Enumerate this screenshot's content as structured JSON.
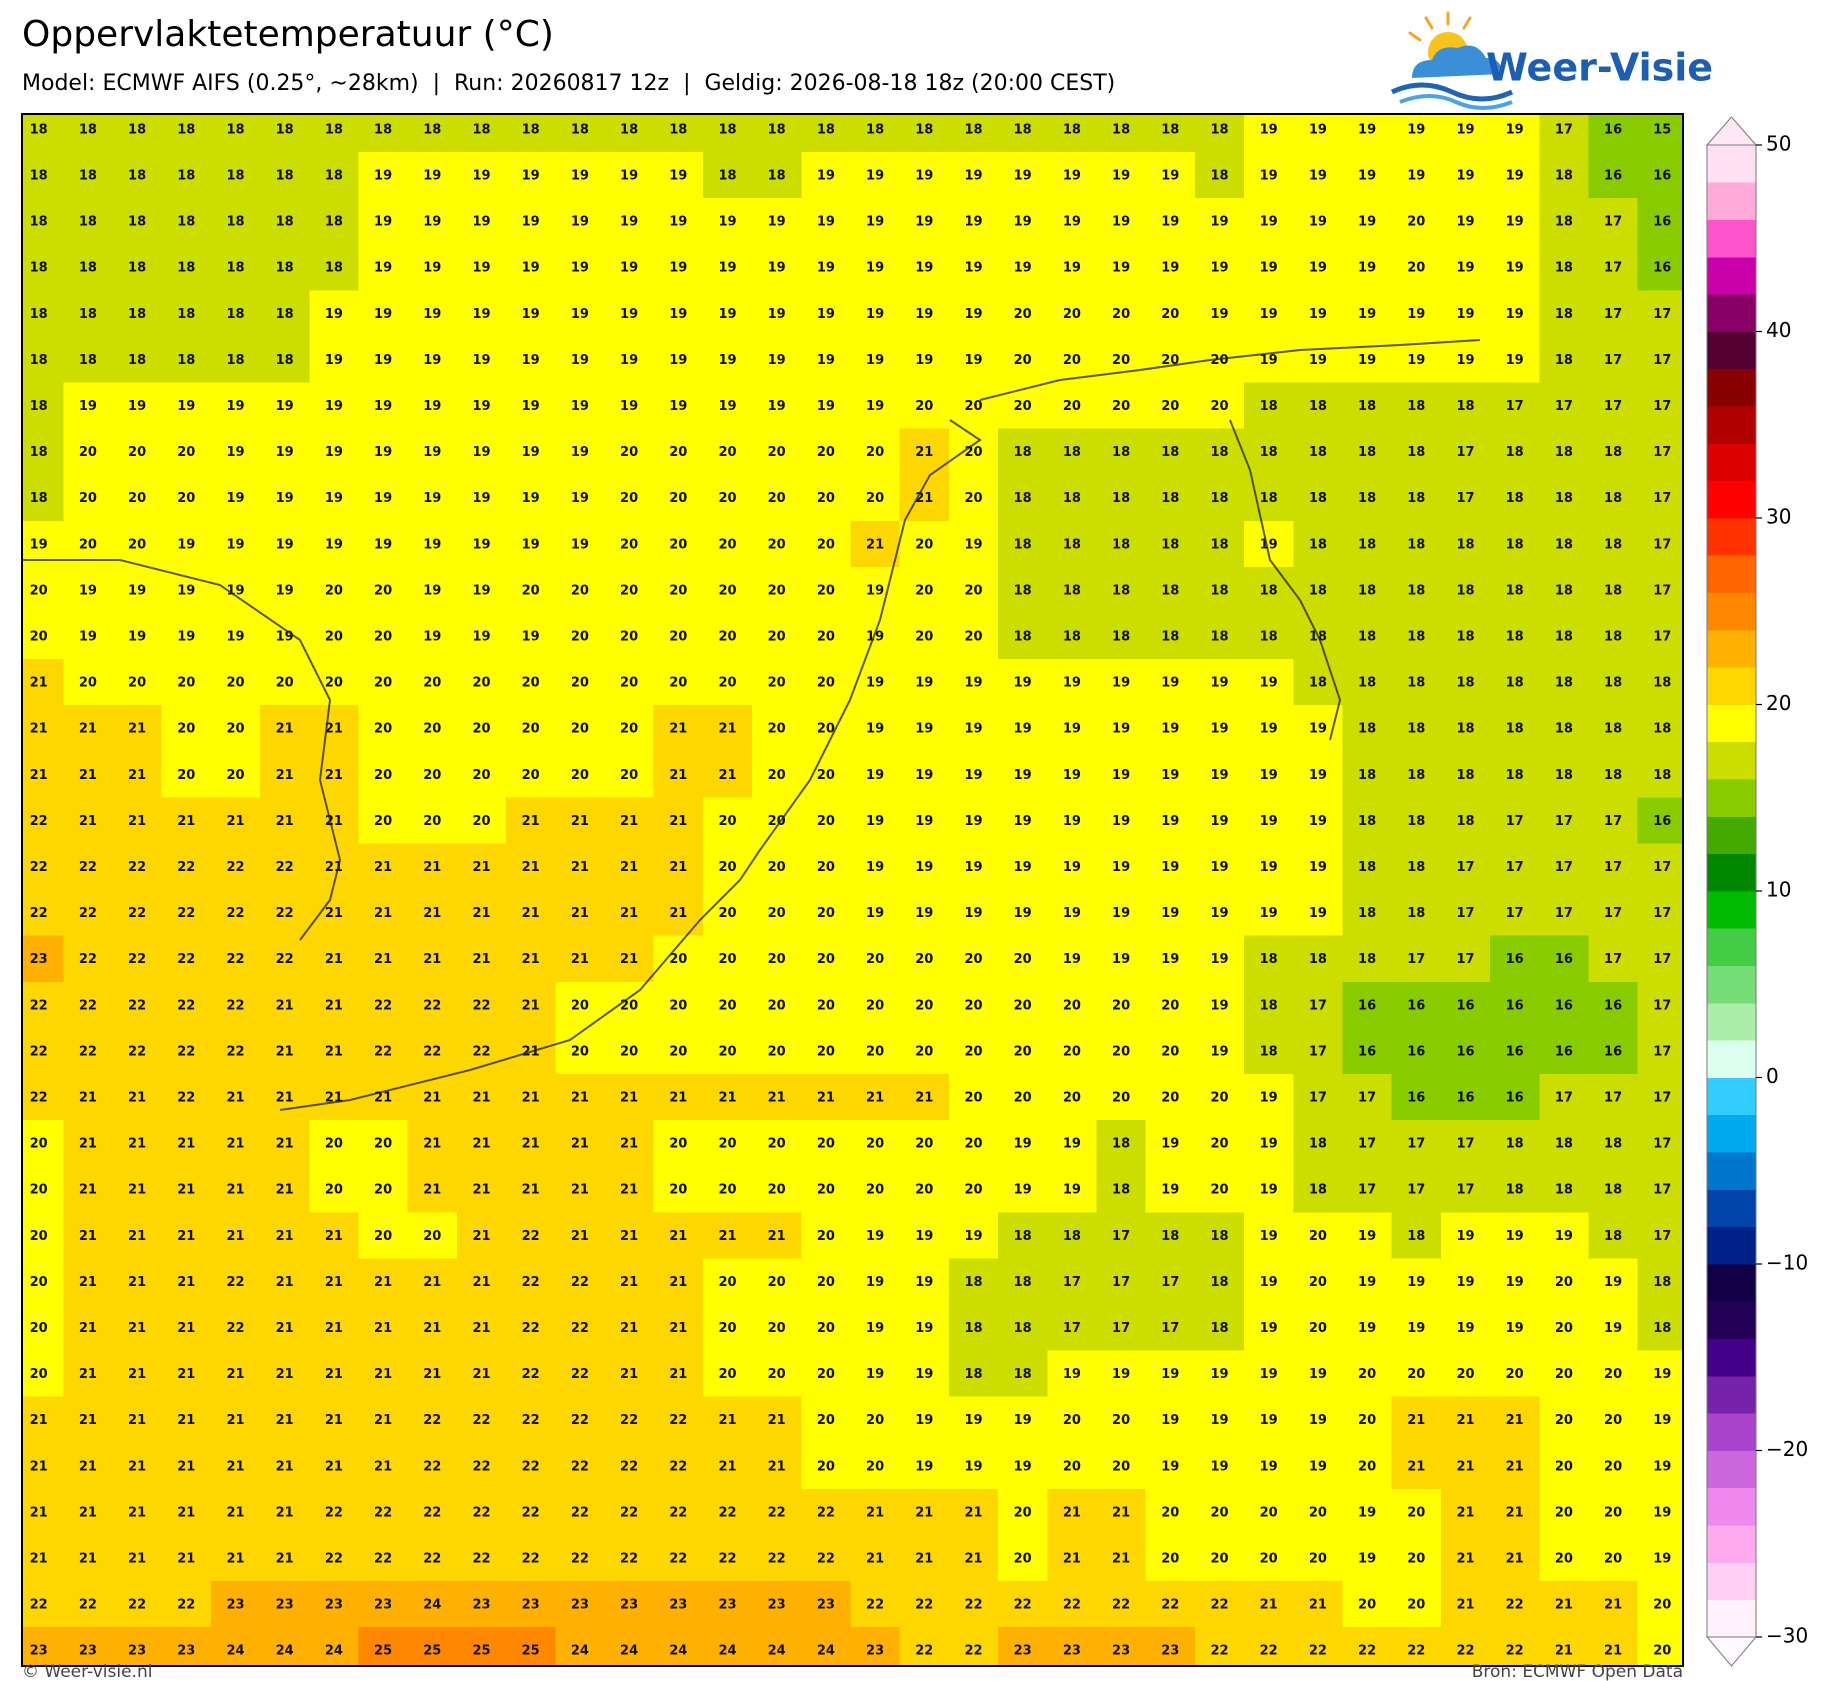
{
  "header": {
    "title": "Oppervlaktetemperatuur (°C)",
    "subtitle": "Model: ECMWF AIFS (0.25°, ~28km)  |  Run: 20260817 12z  |  Geldig: 2026-08-18 18z (20:00 CEST)"
  },
  "logo": "Weer-Visie",
  "map": {
    "rows": [
      [
        18,
        18,
        18,
        18,
        18,
        18,
        18,
        18,
        18,
        18,
        18,
        18,
        18,
        18,
        18,
        18,
        18,
        18,
        18,
        18,
        18,
        18,
        18,
        18,
        18,
        19,
        19,
        19,
        19,
        19,
        19,
        17,
        16,
        15
      ],
      [
        18,
        18,
        18,
        18,
        18,
        18,
        18,
        19,
        19,
        19,
        19,
        19,
        19,
        19,
        18,
        18,
        19,
        19,
        19,
        19,
        19,
        19,
        19,
        19,
        18,
        19,
        19,
        19,
        19,
        19,
        19,
        18,
        16,
        16
      ],
      [
        18,
        18,
        18,
        18,
        18,
        18,
        18,
        19,
        19,
        19,
        19,
        19,
        19,
        19,
        19,
        19,
        19,
        19,
        19,
        19,
        19,
        19,
        19,
        19,
        19,
        19,
        19,
        19,
        20,
        19,
        19,
        18,
        17,
        16
      ],
      [
        18,
        18,
        18,
        18,
        18,
        18,
        18,
        19,
        19,
        19,
        19,
        19,
        19,
        19,
        19,
        19,
        19,
        19,
        19,
        19,
        19,
        19,
        19,
        19,
        19,
        19,
        19,
        19,
        20,
        19,
        19,
        18,
        17,
        16
      ],
      [
        18,
        18,
        18,
        18,
        18,
        18,
        19,
        19,
        19,
        19,
        19,
        19,
        19,
        19,
        19,
        19,
        19,
        19,
        19,
        19,
        20,
        20,
        20,
        20,
        19,
        19,
        19,
        19,
        19,
        19,
        19,
        18,
        17,
        17
      ],
      [
        18,
        18,
        18,
        18,
        18,
        18,
        19,
        19,
        19,
        19,
        19,
        19,
        19,
        19,
        19,
        19,
        19,
        19,
        19,
        19,
        20,
        20,
        20,
        20,
        20,
        19,
        19,
        19,
        19,
        19,
        19,
        18,
        17,
        17
      ],
      [
        18,
        19,
        19,
        19,
        19,
        19,
        19,
        19,
        19,
        19,
        19,
        19,
        19,
        19,
        19,
        19,
        19,
        19,
        20,
        20,
        20,
        20,
        20,
        20,
        20,
        18,
        18,
        18,
        18,
        18,
        17,
        17,
        17,
        17
      ],
      [
        18,
        20,
        20,
        20,
        19,
        19,
        19,
        19,
        19,
        19,
        19,
        19,
        20,
        20,
        20,
        20,
        20,
        20,
        21,
        20,
        18,
        18,
        18,
        18,
        18,
        18,
        18,
        18,
        18,
        17,
        18,
        18,
        18,
        17
      ],
      [
        18,
        20,
        20,
        20,
        19,
        19,
        19,
        19,
        19,
        19,
        19,
        19,
        20,
        20,
        20,
        20,
        20,
        20,
        21,
        20,
        18,
        18,
        18,
        18,
        18,
        18,
        18,
        18,
        18,
        17,
        18,
        18,
        18,
        17
      ],
      [
        19,
        20,
        20,
        19,
        19,
        19,
        19,
        19,
        19,
        19,
        19,
        19,
        20,
        20,
        20,
        20,
        20,
        21,
        20,
        19,
        18,
        18,
        18,
        18,
        18,
        19,
        18,
        18,
        18,
        18,
        18,
        18,
        18,
        17
      ],
      [
        20,
        19,
        19,
        19,
        19,
        19,
        20,
        20,
        19,
        19,
        20,
        20,
        20,
        20,
        20,
        20,
        20,
        19,
        20,
        20,
        18,
        18,
        18,
        18,
        18,
        18,
        18,
        18,
        18,
        18,
        18,
        18,
        18,
        17
      ],
      [
        20,
        19,
        19,
        19,
        19,
        19,
        20,
        20,
        19,
        19,
        19,
        20,
        20,
        20,
        20,
        20,
        20,
        19,
        20,
        20,
        18,
        18,
        18,
        18,
        18,
        18,
        18,
        18,
        18,
        18,
        18,
        18,
        18,
        17
      ],
      [
        21,
        20,
        20,
        20,
        20,
        20,
        20,
        20,
        20,
        20,
        20,
        20,
        20,
        20,
        20,
        20,
        20,
        19,
        19,
        19,
        19,
        19,
        19,
        19,
        19,
        19,
        18,
        18,
        18,
        18,
        18,
        18,
        18,
        18
      ],
      [
        21,
        21,
        21,
        20,
        20,
        21,
        21,
        20,
        20,
        20,
        20,
        20,
        20,
        21,
        21,
        20,
        20,
        19,
        19,
        19,
        19,
        19,
        19,
        19,
        19,
        19,
        19,
        18,
        18,
        18,
        18,
        18,
        18,
        18
      ],
      [
        21,
        21,
        21,
        20,
        20,
        21,
        21,
        20,
        20,
        20,
        20,
        20,
        20,
        21,
        21,
        20,
        20,
        19,
        19,
        19,
        19,
        19,
        19,
        19,
        19,
        19,
        19,
        18,
        18,
        18,
        18,
        18,
        18,
        18
      ],
      [
        22,
        21,
        21,
        21,
        21,
        21,
        21,
        20,
        20,
        20,
        21,
        21,
        21,
        21,
        20,
        20,
        20,
        19,
        19,
        19,
        19,
        19,
        19,
        19,
        19,
        19,
        19,
        18,
        18,
        18,
        17,
        17,
        17,
        16
      ],
      [
        22,
        22,
        22,
        22,
        22,
        22,
        21,
        21,
        21,
        21,
        21,
        21,
        21,
        21,
        20,
        20,
        20,
        19,
        19,
        19,
        19,
        19,
        19,
        19,
        19,
        19,
        19,
        18,
        18,
        17,
        17,
        17,
        17,
        17
      ],
      [
        22,
        22,
        22,
        22,
        22,
        22,
        21,
        21,
        21,
        21,
        21,
        21,
        21,
        21,
        20,
        20,
        20,
        19,
        19,
        19,
        19,
        19,
        19,
        19,
        19,
        19,
        19,
        18,
        18,
        17,
        17,
        17,
        17,
        17
      ],
      [
        23,
        22,
        22,
        22,
        22,
        22,
        21,
        21,
        21,
        21,
        21,
        21,
        21,
        20,
        20,
        20,
        20,
        20,
        20,
        20,
        20,
        19,
        19,
        19,
        19,
        18,
        18,
        18,
        17,
        17,
        16,
        16,
        17,
        17
      ],
      [
        22,
        22,
        22,
        22,
        22,
        21,
        21,
        22,
        22,
        22,
        21,
        20,
        20,
        20,
        20,
        20,
        20,
        20,
        20,
        20,
        20,
        20,
        20,
        20,
        19,
        18,
        17,
        16,
        16,
        16,
        16,
        16,
        16,
        17
      ],
      [
        22,
        22,
        22,
        22,
        22,
        21,
        21,
        22,
        22,
        22,
        21,
        20,
        20,
        20,
        20,
        20,
        20,
        20,
        20,
        20,
        20,
        20,
        20,
        20,
        19,
        18,
        17,
        16,
        16,
        16,
        16,
        16,
        16,
        17
      ],
      [
        22,
        21,
        21,
        22,
        21,
        21,
        21,
        21,
        21,
        21,
        21,
        21,
        21,
        21,
        21,
        21,
        21,
        21,
        21,
        20,
        20,
        20,
        20,
        20,
        20,
        19,
        17,
        17,
        16,
        16,
        16,
        17,
        17,
        17
      ],
      [
        20,
        21,
        21,
        21,
        21,
        21,
        20,
        20,
        21,
        21,
        21,
        21,
        21,
        20,
        20,
        20,
        20,
        20,
        20,
        20,
        19,
        19,
        18,
        19,
        20,
        19,
        18,
        17,
        17,
        17,
        18,
        18,
        18,
        17
      ],
      [
        20,
        21,
        21,
        21,
        21,
        21,
        20,
        20,
        21,
        21,
        21,
        21,
        21,
        20,
        20,
        20,
        20,
        20,
        20,
        20,
        19,
        19,
        18,
        19,
        20,
        19,
        18,
        17,
        17,
        17,
        18,
        18,
        18,
        17
      ],
      [
        20,
        21,
        21,
        21,
        21,
        21,
        21,
        20,
        20,
        21,
        22,
        21,
        21,
        21,
        21,
        21,
        20,
        19,
        19,
        19,
        18,
        18,
        17,
        18,
        18,
        19,
        20,
        19,
        18,
        19,
        19,
        19,
        18,
        17
      ],
      [
        20,
        21,
        21,
        21,
        22,
        21,
        21,
        21,
        21,
        21,
        22,
        22,
        21,
        21,
        20,
        20,
        20,
        19,
        19,
        18,
        18,
        17,
        17,
        17,
        18,
        19,
        20,
        19,
        19,
        19,
        19,
        20,
        19,
        18
      ],
      [
        20,
        21,
        21,
        21,
        22,
        21,
        21,
        21,
        21,
        21,
        22,
        22,
        21,
        21,
        20,
        20,
        20,
        19,
        19,
        18,
        18,
        17,
        17,
        17,
        18,
        19,
        20,
        19,
        19,
        19,
        19,
        20,
        19,
        18
      ],
      [
        20,
        21,
        21,
        21,
        21,
        21,
        21,
        21,
        21,
        21,
        22,
        22,
        21,
        21,
        20,
        20,
        20,
        19,
        19,
        18,
        18,
        19,
        19,
        19,
        19,
        19,
        19,
        20,
        20,
        20,
        20,
        20,
        20,
        19
      ],
      [
        21,
        21,
        21,
        21,
        21,
        21,
        21,
        21,
        22,
        22,
        22,
        22,
        22,
        22,
        21,
        21,
        20,
        20,
        19,
        19,
        19,
        20,
        20,
        19,
        19,
        19,
        19,
        20,
        21,
        21,
        21,
        20,
        20,
        19
      ],
      [
        21,
        21,
        21,
        21,
        21,
        21,
        21,
        21,
        22,
        22,
        22,
        22,
        22,
        22,
        21,
        21,
        20,
        20,
        19,
        19,
        19,
        20,
        20,
        19,
        19,
        19,
        19,
        20,
        21,
        21,
        21,
        20,
        20,
        19
      ],
      [
        21,
        21,
        21,
        21,
        21,
        21,
        22,
        22,
        22,
        22,
        22,
        22,
        22,
        22,
        22,
        22,
        22,
        21,
        21,
        21,
        20,
        21,
        21,
        20,
        20,
        20,
        20,
        19,
        20,
        21,
        21,
        20,
        20,
        19
      ],
      [
        21,
        21,
        21,
        21,
        21,
        21,
        22,
        22,
        22,
        22,
        22,
        22,
        22,
        22,
        22,
        22,
        22,
        21,
        21,
        21,
        20,
        21,
        21,
        20,
        20,
        20,
        20,
        19,
        20,
        21,
        21,
        20,
        20,
        19
      ],
      [
        22,
        22,
        22,
        22,
        23,
        23,
        23,
        23,
        24,
        23,
        23,
        23,
        23,
        23,
        23,
        23,
        23,
        22,
        22,
        22,
        22,
        22,
        22,
        22,
        22,
        21,
        21,
        20,
        20,
        21,
        22,
        21,
        21,
        20
      ],
      [
        23,
        23,
        23,
        23,
        24,
        24,
        24,
        25,
        25,
        25,
        25,
        24,
        24,
        24,
        24,
        24,
        24,
        23,
        22,
        22,
        23,
        23,
        23,
        23,
        22,
        22,
        22,
        22,
        22,
        22,
        22,
        21,
        21,
        20
      ]
    ]
  },
  "colorbar": {
    "range": [
      -30,
      50
    ],
    "ticks": [
      {
        "value": -30,
        "label": "−30"
      },
      {
        "value": -20,
        "label": "−20"
      },
      {
        "value": -10,
        "label": "−10"
      },
      0,
      10,
      20,
      30,
      40,
      50
    ],
    "colors": [
      "#fff0fc",
      "#ffd0f4",
      "#ffaaee",
      "#ee88ee",
      "#cc66dd",
      "#aa44cc",
      "#7722aa",
      "#440088",
      "#220055",
      "#110044",
      "#002288",
      "#0044aa",
      "#0077cc",
      "#00aaee",
      "#33ccff",
      "#ddffee",
      "#aaeeaa",
      "#77dd77",
      "#44cc44",
      "#00bb00",
      "#008800",
      "#44aa00",
      "#88cc00",
      "#ccdd00",
      "#ffff00",
      "#ffd700",
      "#ffb000",
      "#ff8800",
      "#ff6600",
      "#ff3300",
      "#ff0000",
      "#dd0000",
      "#b00000",
      "#880000",
      "#550033",
      "#880066",
      "#cc00aa",
      "#ff55cc",
      "#ffaad8",
      "#ffe0f2"
    ]
  },
  "footer": {
    "left": "© Weer-visie.nl",
    "right": "Bron: ECMWF Open Data"
  }
}
